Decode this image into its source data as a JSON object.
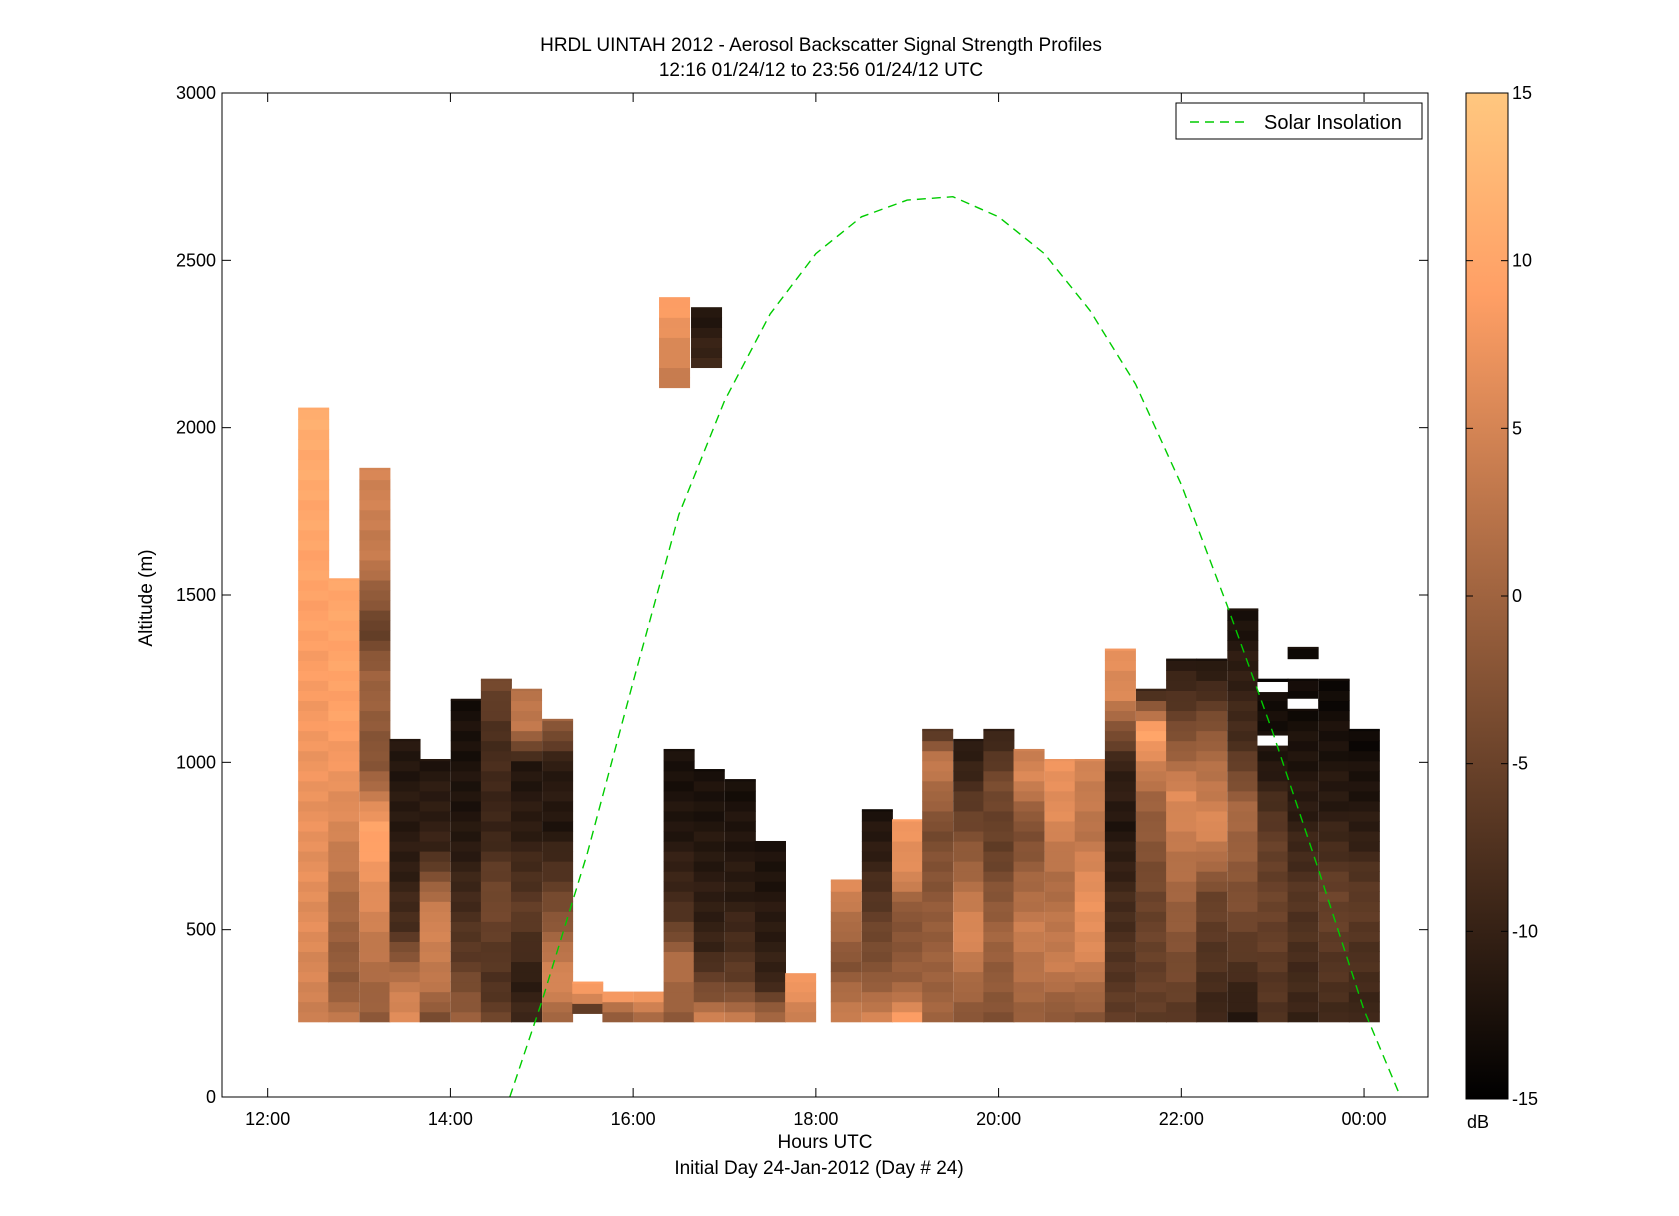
{
  "chart_data": {
    "type": "heatmap",
    "title": "HRDL UINTAH 2012 - Aerosol Backscatter Signal Strength Profiles",
    "subtitle": "12:16 01/24/12 to 23:56 01/24/12  UTC",
    "xlabel": "Hours UTC",
    "xlabel2": "Initial Day 24-Jan-2012 (Day # 24)",
    "ylabel": "Altitude (m)",
    "xlim": [
      11.5,
      24.7
    ],
    "ylim": [
      0,
      3000
    ],
    "x_ticks": [
      12,
      14,
      16,
      18,
      20,
      22,
      24
    ],
    "x_tick_labels": [
      "12:00",
      "14:00",
      "16:00",
      "18:00",
      "20:00",
      "22:00",
      "00:00"
    ],
    "y_ticks": [
      0,
      500,
      1000,
      1500,
      2000,
      2500,
      3000
    ],
    "y_tick_labels": [
      "0",
      "500",
      "1000",
      "1500",
      "2000",
      "2500",
      "3000"
    ],
    "colorbar": {
      "min": -15,
      "max": 15,
      "ticks": [
        -15,
        -10,
        -5,
        0,
        5,
        10,
        15
      ],
      "tick_labels": [
        "-15",
        "-10",
        "-5",
        "0",
        "5",
        "10",
        "15"
      ],
      "unit": "dB",
      "colormap": "copper",
      "color_low": "#000000",
      "color_high": "#ffc77f"
    },
    "grid": false,
    "legend": {
      "position": "top-right",
      "entries": [
        "Solar Insolation"
      ]
    },
    "solar_insolation": {
      "style": "dashed",
      "color": "#00cc00",
      "x": [
        14.65,
        15.0,
        15.5,
        16.0,
        16.5,
        17.0,
        17.5,
        18.0,
        18.5,
        19.0,
        19.5,
        20.0,
        20.5,
        21.0,
        21.5,
        22.0,
        22.5,
        23.0,
        23.5,
        24.0,
        24.4
      ],
      "y": [
        0,
        285,
        730,
        1240,
        1740,
        2080,
        2340,
        2520,
        2630,
        2680,
        2690,
        2630,
        2520,
        2350,
        2130,
        1830,
        1470,
        1090,
        680,
        260,
        0
      ]
    },
    "profile_time_step_hours": 0.333,
    "profile_altitude_step_m": 30,
    "profiles": [
      {
        "t": 12.5,
        "bottom": 225,
        "top": 2060,
        "dB": [
          [
            225,
            4
          ],
          [
            500,
            6
          ],
          [
            900,
            7
          ],
          [
            1400,
            9
          ],
          [
            2060,
            11
          ]
        ]
      },
      {
        "t": 12.83,
        "bottom": 225,
        "top": 1550,
        "dB": [
          [
            225,
            3
          ],
          [
            350,
            -2
          ],
          [
            550,
            0
          ],
          [
            800,
            5
          ],
          [
            1100,
            9
          ],
          [
            1550,
            10
          ]
        ]
      },
      {
        "t": 13.17,
        "bottom": 225,
        "top": 1880,
        "dB": [
          [
            225,
            -2
          ],
          [
            500,
            4
          ],
          [
            800,
            10
          ],
          [
            1000,
            -3
          ],
          [
            1250,
            0
          ],
          [
            1400,
            -6
          ],
          [
            1600,
            3
          ],
          [
            1880,
            5
          ]
        ]
      },
      {
        "t": 13.5,
        "bottom": 225,
        "top": 1070,
        "dB": [
          [
            225,
            6
          ],
          [
            350,
            3
          ],
          [
            500,
            -8
          ],
          [
            700,
            -11
          ],
          [
            1070,
            -12
          ]
        ]
      },
      {
        "t": 13.83,
        "bottom": 225,
        "top": 1010,
        "dB": [
          [
            225,
            -4
          ],
          [
            350,
            3
          ],
          [
            550,
            5
          ],
          [
            750,
            -10
          ],
          [
            1010,
            -12
          ]
        ]
      },
      {
        "t": 14.17,
        "bottom": 225,
        "top": 1190,
        "dB": [
          [
            225,
            0
          ],
          [
            400,
            -6
          ],
          [
            600,
            -9
          ],
          [
            800,
            -12
          ],
          [
            1190,
            -13
          ]
        ]
      },
      {
        "t": 14.5,
        "bottom": 225,
        "top": 1250,
        "dB": [
          [
            225,
            -5
          ],
          [
            350,
            -8
          ],
          [
            600,
            -4
          ],
          [
            800,
            -10
          ],
          [
            1100,
            -8
          ],
          [
            1250,
            -4
          ]
        ]
      },
      {
        "t": 14.83,
        "bottom": 225,
        "top": 1220,
        "dB": [
          [
            225,
            -9
          ],
          [
            350,
            -11
          ],
          [
            550,
            -6
          ],
          [
            800,
            -11
          ],
          [
            1000,
            -12
          ],
          [
            1100,
            3
          ],
          [
            1220,
            2
          ]
        ]
      },
      {
        "t": 15.17,
        "bottom": 225,
        "top": 1130,
        "dB": [
          [
            225,
            -1
          ],
          [
            350,
            6
          ],
          [
            550,
            -3
          ],
          [
            800,
            -12
          ],
          [
            1000,
            -11
          ],
          [
            1130,
            0
          ]
        ]
      },
      {
        "t": 15.5,
        "bottom": 250,
        "top": 345,
        "dB": [
          [
            250,
            -13
          ],
          [
            290,
            5
          ],
          [
            345,
            9
          ]
        ]
      },
      {
        "t": 15.83,
        "bottom": 225,
        "top": 315,
        "dB": [
          [
            225,
            -3
          ],
          [
            260,
            1
          ],
          [
            315,
            10
          ]
        ]
      },
      {
        "t": 16.17,
        "bottom": 225,
        "top": 315,
        "dB": [
          [
            225,
            -2
          ],
          [
            260,
            3
          ],
          [
            315,
            10
          ]
        ]
      },
      {
        "t": 16.5,
        "bottom": 225,
        "top": 1040,
        "dB": [
          [
            225,
            -2
          ],
          [
            400,
            2
          ],
          [
            550,
            -8
          ],
          [
            800,
            -12
          ],
          [
            1040,
            -13
          ]
        ]
      },
      {
        "t": 16.45,
        "bottom": 2120,
        "top": 2390,
        "dB": [
          [
            2120,
            3
          ],
          [
            2250,
            6
          ],
          [
            2390,
            9
          ]
        ]
      },
      {
        "t": 16.83,
        "bottom": 225,
        "top": 980,
        "dB": [
          [
            225,
            7
          ],
          [
            300,
            -3
          ],
          [
            450,
            -10
          ],
          [
            980,
            -13
          ]
        ]
      },
      {
        "t": 16.8,
        "bottom": 2180,
        "top": 2360,
        "dB": [
          [
            2180,
            -9
          ],
          [
            2360,
            -12
          ]
        ]
      },
      {
        "t": 17.17,
        "bottom": 225,
        "top": 950,
        "dB": [
          [
            225,
            4
          ],
          [
            350,
            -6
          ],
          [
            600,
            -11
          ],
          [
            950,
            -13
          ]
        ]
      },
      {
        "t": 17.5,
        "bottom": 225,
        "top": 765,
        "dB": [
          [
            225,
            2
          ],
          [
            350,
            -10
          ],
          [
            765,
            -13
          ]
        ]
      },
      {
        "t": 17.83,
        "bottom": 225,
        "top": 370,
        "dB": [
          [
            225,
            3
          ],
          [
            300,
            6
          ],
          [
            370,
            9
          ]
        ]
      },
      {
        "t": 18.33,
        "bottom": 225,
        "top": 650,
        "dB": [
          [
            225,
            5
          ],
          [
            400,
            -3
          ],
          [
            650,
            6
          ]
        ]
      },
      {
        "t": 18.67,
        "bottom": 225,
        "top": 860,
        "dB": [
          [
            225,
            6
          ],
          [
            350,
            -2
          ],
          [
            550,
            -6
          ],
          [
            700,
            -10
          ],
          [
            860,
            -13
          ]
        ]
      },
      {
        "t": 19.0,
        "bottom": 225,
        "top": 830,
        "dB": [
          [
            225,
            9
          ],
          [
            350,
            -1
          ],
          [
            550,
            -3
          ],
          [
            650,
            5
          ],
          [
            830,
            8
          ]
        ]
      },
      {
        "t": 19.33,
        "bottom": 225,
        "top": 1100,
        "dB": [
          [
            225,
            0
          ],
          [
            500,
            -1
          ],
          [
            800,
            -4
          ],
          [
            1000,
            4
          ],
          [
            1100,
            -8
          ]
        ]
      },
      {
        "t": 19.67,
        "bottom": 225,
        "top": 1070,
        "dB": [
          [
            225,
            -3
          ],
          [
            500,
            6
          ],
          [
            800,
            -4
          ],
          [
            950,
            -9
          ],
          [
            1070,
            -12
          ]
        ]
      },
      {
        "t": 20.0,
        "bottom": 225,
        "top": 1100,
        "dB": [
          [
            225,
            -3
          ],
          [
            500,
            0
          ],
          [
            750,
            -6
          ],
          [
            950,
            -4
          ],
          [
            1100,
            -11
          ]
        ]
      },
      {
        "t": 20.33,
        "bottom": 225,
        "top": 1040,
        "dB": [
          [
            225,
            -1
          ],
          [
            500,
            4
          ],
          [
            800,
            -4
          ],
          [
            950,
            5
          ],
          [
            1040,
            4
          ]
        ]
      },
      {
        "t": 20.67,
        "bottom": 225,
        "top": 1010,
        "dB": [
          [
            225,
            -3
          ],
          [
            400,
            4
          ],
          [
            650,
            1
          ],
          [
            850,
            6
          ],
          [
            1010,
            7
          ]
        ]
      },
      {
        "t": 21.0,
        "bottom": 225,
        "top": 1010,
        "dB": [
          [
            225,
            -3
          ],
          [
            450,
            6
          ],
          [
            620,
            7
          ],
          [
            800,
            2
          ],
          [
            1010,
            5
          ]
        ]
      },
      {
        "t": 21.33,
        "bottom": 225,
        "top": 1340,
        "dB": [
          [
            225,
            -6
          ],
          [
            600,
            -9
          ],
          [
            800,
            -12
          ],
          [
            1000,
            -10
          ],
          [
            1200,
            5
          ],
          [
            1340,
            7
          ]
        ]
      },
      {
        "t": 21.67,
        "bottom": 225,
        "top": 1220,
        "dB": [
          [
            225,
            -6
          ],
          [
            600,
            -5
          ],
          [
            900,
            0
          ],
          [
            1100,
            10
          ],
          [
            1220,
            -11
          ]
        ]
      },
      {
        "t": 22.0,
        "bottom": 225,
        "top": 1310,
        "dB": [
          [
            225,
            -7
          ],
          [
            550,
            -1
          ],
          [
            900,
            6
          ],
          [
            1100,
            -4
          ],
          [
            1310,
            -12
          ]
        ]
      },
      {
        "t": 22.33,
        "bottom": 225,
        "top": 1310,
        "dB": [
          [
            225,
            -10
          ],
          [
            600,
            -5
          ],
          [
            800,
            6
          ],
          [
            1050,
            0
          ],
          [
            1310,
            -13
          ]
        ]
      },
      {
        "t": 22.67,
        "bottom": 225,
        "top": 1460,
        "dB": [
          [
            225,
            -12
          ],
          [
            550,
            -4
          ],
          [
            850,
            1
          ],
          [
            1050,
            -8
          ],
          [
            1460,
            -13
          ]
        ]
      },
      {
        "t": 23.0,
        "bottom": 225,
        "top": 1250,
        "dB": [
          [
            225,
            -8
          ],
          [
            550,
            -5
          ],
          [
            800,
            -6
          ],
          [
            1000,
            -12
          ],
          [
            1250,
            -14
          ]
        ]
      },
      {
        "t": 23.33,
        "bottom": 225,
        "top": 1250,
        "dB": [
          [
            225,
            -10
          ],
          [
            600,
            -7
          ],
          [
            850,
            -11
          ],
          [
            1250,
            -14
          ]
        ]
      },
      {
        "t": 23.67,
        "bottom": 225,
        "top": 1250,
        "dB": [
          [
            225,
            -9
          ],
          [
            600,
            -5
          ],
          [
            850,
            -11
          ],
          [
            1250,
            -14
          ]
        ]
      },
      {
        "t": 24.0,
        "bottom": 225,
        "top": 1100,
        "dB": [
          [
            225,
            -10
          ],
          [
            600,
            -6
          ],
          [
            800,
            -11
          ],
          [
            1100,
            -14
          ]
        ]
      },
      {
        "t": 23.33,
        "bottom": 1310,
        "top": 1345,
        "dB": [
          [
            1310,
            -13
          ],
          [
            1345,
            -13
          ]
        ]
      }
    ],
    "gaps": [
      {
        "t": 23.0,
        "bottom": 1050,
        "top": 1080
      },
      {
        "t": 23.0,
        "bottom": 1210,
        "top": 1240
      },
      {
        "t": 23.33,
        "bottom": 1160,
        "top": 1190
      }
    ]
  }
}
